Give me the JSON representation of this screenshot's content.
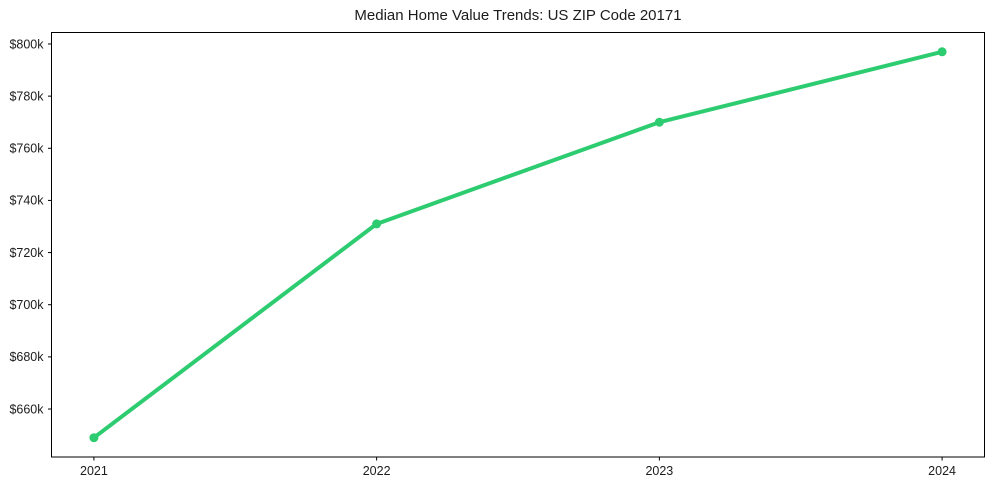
{
  "figure": {
    "background_color": "#ffffff"
  },
  "chart_data": {
    "type": "line",
    "title": "Median Home Value Trends: US ZIP Code 20171",
    "x": [
      2021,
      2022,
      2023,
      2024
    ],
    "x_tick_labels": [
      "2021",
      "2022",
      "2023",
      "2024"
    ],
    "series": [
      {
        "name": "median-home-value",
        "values": [
          649000,
          731000,
          770000,
          797000
        ],
        "color": "#2ecc71",
        "marker": "circle"
      }
    ],
    "y_ticks": [
      660000,
      680000,
      700000,
      720000,
      740000,
      760000,
      780000,
      800000
    ],
    "y_tick_labels": [
      "$660k",
      "$680k",
      "$700k",
      "$720k",
      "$740k",
      "$760k",
      "$780k",
      "$800k"
    ],
    "ylim": [
      641600,
      804400
    ],
    "xlim": [
      2020.85,
      2024.15
    ],
    "xlabel": "",
    "ylabel": "",
    "grid": false,
    "legend": "none",
    "axis_color": "#000000",
    "text_color": "#1c1c1c",
    "line_width": 4,
    "marker_radius": 4.5
  }
}
